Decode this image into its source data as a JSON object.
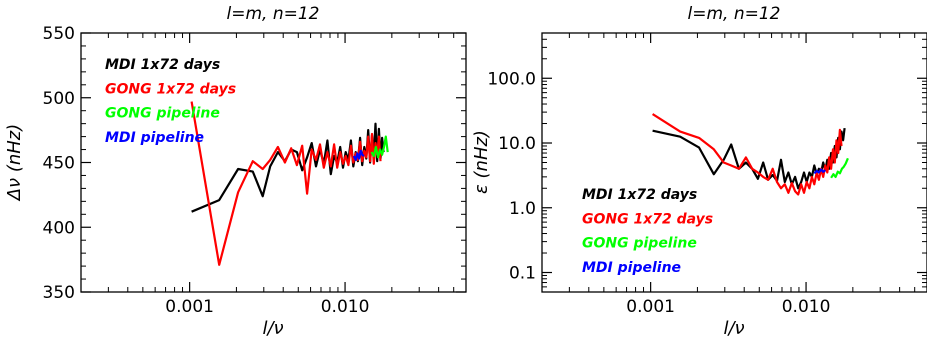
{
  "chart_data": [
    {
      "type": "line",
      "title": "l=m,  n=12",
      "xlabel": "l/ν",
      "ylabel": "Δν  (nHz)",
      "xscale": "log",
      "yscale": "linear",
      "xlim": [
        0.0002,
        0.06
      ],
      "ylim": [
        350,
        550
      ],
      "xticks": [
        0.001,
        0.01
      ],
      "xtick_labels": [
        "0.001",
        "0.010"
      ],
      "yticks": [
        350,
        400,
        450,
        500,
        550
      ],
      "ytick_labels": [
        "350",
        "400",
        "450",
        "500",
        "550"
      ],
      "legend_position": "top-left",
      "grid": false,
      "series": [
        {
          "name": "MDI 1x72 days",
          "color": "#000000",
          "points": [
            [
              0.00103,
              412
            ],
            [
              0.00155,
              421
            ],
            [
              0.00205,
              445
            ],
            [
              0.00255,
              443
            ],
            [
              0.00295,
              424
            ],
            [
              0.0033,
              447
            ],
            [
              0.0037,
              458
            ],
            [
              0.0041,
              451
            ],
            [
              0.0045,
              460
            ],
            [
              0.0049,
              458
            ],
            [
              0.0053,
              444
            ],
            [
              0.0057,
              454
            ],
            [
              0.0061,
              465
            ],
            [
              0.0065,
              447
            ],
            [
              0.0069,
              460
            ],
            [
              0.0073,
              449
            ],
            [
              0.0077,
              467
            ],
            [
              0.0081,
              441
            ],
            [
              0.0085,
              455
            ],
            [
              0.0089,
              450
            ],
            [
              0.0093,
              462
            ],
            [
              0.0097,
              446
            ],
            [
              0.0101,
              458
            ],
            [
              0.0105,
              452
            ],
            [
              0.0109,
              467
            ],
            [
              0.0113,
              447
            ],
            [
              0.0117,
              458
            ],
            [
              0.0121,
              451
            ],
            [
              0.0125,
              469
            ],
            [
              0.0129,
              448
            ],
            [
              0.0133,
              462
            ],
            [
              0.0137,
              453
            ],
            [
              0.0141,
              475
            ],
            [
              0.0145,
              450
            ],
            [
              0.0149,
              471
            ],
            [
              0.0153,
              455
            ],
            [
              0.0157,
              480
            ],
            [
              0.0161,
              451
            ],
            [
              0.0165,
              476
            ],
            [
              0.0169,
              453
            ],
            [
              0.0173,
              469
            ],
            [
              0.0177,
              458
            ]
          ]
        },
        {
          "name": "GONG 1x72 days",
          "color": "#ff0000",
          "points": [
            [
              0.00103,
              497
            ],
            [
              0.00155,
              371
            ],
            [
              0.00205,
              427
            ],
            [
              0.00255,
              451
            ],
            [
              0.00295,
              445
            ],
            [
              0.0033,
              452
            ],
            [
              0.0037,
              462
            ],
            [
              0.0041,
              450
            ],
            [
              0.0045,
              461
            ],
            [
              0.0049,
              448
            ],
            [
              0.0053,
              463
            ],
            [
              0.0057,
              426
            ],
            [
              0.0061,
              460
            ],
            [
              0.0065,
              452
            ],
            [
              0.0069,
              464
            ],
            [
              0.0073,
              446
            ],
            [
              0.0077,
              458
            ],
            [
              0.0081,
              447
            ],
            [
              0.0085,
              464
            ],
            [
              0.0089,
              446
            ],
            [
              0.0093,
              458
            ],
            [
              0.0097,
              449
            ],
            [
              0.0101,
              455
            ],
            [
              0.0105,
              448
            ],
            [
              0.0109,
              463
            ],
            [
              0.0113,
              450
            ],
            [
              0.0117,
              457
            ],
            [
              0.0121,
              452
            ],
            [
              0.0125,
              466
            ],
            [
              0.0129,
              451
            ],
            [
              0.0133,
              459
            ],
            [
              0.0137,
              454
            ],
            [
              0.0141,
              470
            ],
            [
              0.0145,
              451
            ],
            [
              0.0149,
              472
            ],
            [
              0.0153,
              449
            ],
            [
              0.0157,
              465
            ],
            [
              0.0161,
              456
            ],
            [
              0.0165,
              470
            ],
            [
              0.0169,
              451
            ]
          ]
        },
        {
          "name": "GONG pipeline",
          "color": "#00ff00",
          "points": [
            [
              0.0148,
              458
            ],
            [
              0.0153,
              455
            ],
            [
              0.0158,
              462
            ],
            [
              0.0163,
              454
            ],
            [
              0.0168,
              460
            ],
            [
              0.0173,
              456
            ],
            [
              0.0178,
              462
            ],
            [
              0.0183,
              470
            ],
            [
              0.0188,
              458
            ]
          ]
        },
        {
          "name": "MDI pipeline",
          "color": "#0000ff",
          "points": [
            [
              0.0114,
              455
            ],
            [
              0.0117,
              452
            ],
            [
              0.012,
              457
            ],
            [
              0.0123,
              453
            ],
            [
              0.0126,
              459
            ],
            [
              0.0129,
              456
            ],
            [
              0.0132,
              455
            ]
          ]
        }
      ]
    },
    {
      "type": "line",
      "title": "l=m,  n=12",
      "xlabel": "l/ν",
      "ylabel": "ε  (nHz)",
      "xscale": "log",
      "yscale": "log",
      "xlim": [
        0.0002,
        0.06
      ],
      "ylim": [
        0.05,
        500
      ],
      "xticks": [
        0.001,
        0.01
      ],
      "xtick_labels": [
        "0.001",
        "0.010"
      ],
      "yticks": [
        0.1,
        1,
        10,
        100
      ],
      "ytick_labels": [
        "0.1",
        "1.0",
        "10.0",
        "100.0"
      ],
      "legend_position": "bottom-left",
      "grid": false,
      "series": [
        {
          "name": "MDI 1x72 days",
          "color": "#000000",
          "points": [
            [
              0.00103,
              15.5
            ],
            [
              0.00155,
              12.5
            ],
            [
              0.00205,
              8.5
            ],
            [
              0.00255,
              3.3
            ],
            [
              0.00295,
              5.5
            ],
            [
              0.0033,
              9.5
            ],
            [
              0.0037,
              4.0
            ],
            [
              0.0041,
              5.0
            ],
            [
              0.0045,
              4.0
            ],
            [
              0.0049,
              2.8
            ],
            [
              0.0053,
              5.0
            ],
            [
              0.0057,
              2.7
            ],
            [
              0.0061,
              3.2
            ],
            [
              0.0065,
              2.6
            ],
            [
              0.0069,
              5.5
            ],
            [
              0.0073,
              2.5
            ],
            [
              0.0077,
              3.5
            ],
            [
              0.0081,
              2.3
            ],
            [
              0.0085,
              3.0
            ],
            [
              0.0089,
              2.0
            ],
            [
              0.0093,
              2.5
            ],
            [
              0.0097,
              3.5
            ],
            [
              0.0101,
              2.5
            ],
            [
              0.0105,
              3.5
            ],
            [
              0.0109,
              3.0
            ],
            [
              0.0113,
              4.5
            ],
            [
              0.0117,
              3.3
            ],
            [
              0.0121,
              4.0
            ],
            [
              0.0125,
              3.5
            ],
            [
              0.0129,
              5.0
            ],
            [
              0.0133,
              3.8
            ],
            [
              0.0137,
              5.5
            ],
            [
              0.0141,
              4.0
            ],
            [
              0.0145,
              7.0
            ],
            [
              0.0149,
              5.0
            ],
            [
              0.0153,
              9.0
            ],
            [
              0.0157,
              6.0
            ],
            [
              0.0161,
              12.0
            ],
            [
              0.0165,
              8.0
            ],
            [
              0.0169,
              15.0
            ],
            [
              0.0173,
              11.0
            ],
            [
              0.0177,
              17.0
            ]
          ]
        },
        {
          "name": "GONG 1x72 days",
          "color": "#ff0000",
          "points": [
            [
              0.00103,
              28.0
            ],
            [
              0.00155,
              15.0
            ],
            [
              0.00205,
              12.0
            ],
            [
              0.00255,
              8.0
            ],
            [
              0.00295,
              5.0
            ],
            [
              0.0033,
              4.5
            ],
            [
              0.0037,
              4.0
            ],
            [
              0.0041,
              6.0
            ],
            [
              0.0045,
              4.0
            ],
            [
              0.0049,
              3.5
            ],
            [
              0.0053,
              3.0
            ],
            [
              0.0057,
              2.7
            ],
            [
              0.0061,
              4.0
            ],
            [
              0.0065,
              2.5
            ],
            [
              0.0069,
              2.0
            ],
            [
              0.0073,
              2.3
            ],
            [
              0.0077,
              1.7
            ],
            [
              0.0081,
              2.4
            ],
            [
              0.0085,
              1.8
            ],
            [
              0.0089,
              1.6
            ],
            [
              0.0093,
              2.3
            ],
            [
              0.0097,
              1.7
            ],
            [
              0.0101,
              2.5
            ],
            [
              0.0105,
              2.0
            ],
            [
              0.0109,
              3.0
            ],
            [
              0.0113,
              2.3
            ],
            [
              0.0117,
              3.5
            ],
            [
              0.0121,
              2.7
            ],
            [
              0.0125,
              4.0
            ],
            [
              0.0129,
              3.0
            ],
            [
              0.0133,
              4.5
            ],
            [
              0.0137,
              3.5
            ],
            [
              0.0141,
              6.0
            ],
            [
              0.0145,
              4.0
            ],
            [
              0.0149,
              8.0
            ],
            [
              0.0153,
              5.0
            ],
            [
              0.0157,
              11.0
            ],
            [
              0.0161,
              7.0
            ],
            [
              0.0165,
              16.0
            ],
            [
              0.0169,
              9.0
            ]
          ]
        },
        {
          "name": "GONG pipeline",
          "color": "#00ff00",
          "points": [
            [
              0.0145,
              2.9
            ],
            [
              0.015,
              3.3
            ],
            [
              0.0155,
              3.0
            ],
            [
              0.016,
              3.6
            ],
            [
              0.0165,
              3.4
            ],
            [
              0.017,
              4.0
            ],
            [
              0.0175,
              4.3
            ],
            [
              0.018,
              4.8
            ],
            [
              0.0186,
              5.8
            ]
          ]
        },
        {
          "name": "MDI pipeline",
          "color": "#0000ff",
          "points": [
            [
              0.0113,
              3.4
            ],
            [
              0.0117,
              3.7
            ],
            [
              0.0121,
              3.5
            ],
            [
              0.0125,
              3.9
            ],
            [
              0.0129,
              3.6
            ],
            [
              0.0133,
              3.8
            ]
          ]
        }
      ]
    }
  ]
}
